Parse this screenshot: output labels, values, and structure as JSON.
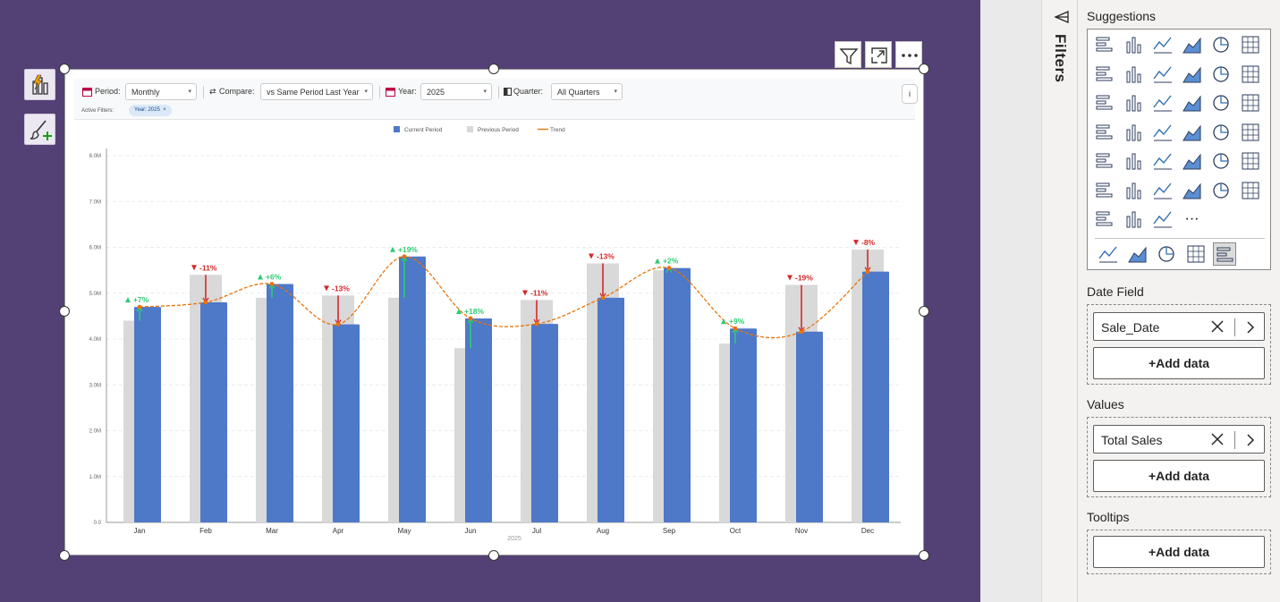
{
  "canvas": {
    "background": "#534176"
  },
  "visual_header": {
    "filter_icon": "filter-icon",
    "focus_icon": "focus-mode-icon",
    "more_icon": "more-options-icon"
  },
  "toolbar": {
    "period_label": "Period:",
    "period_value": "Monthly",
    "compare_label": "Compare:",
    "compare_value": "vs Same Period Last Year",
    "year_label": "Year:",
    "year_value": "2025",
    "quarter_label": "Quarter:",
    "quarter_value": "All Quarters",
    "info_label": "i",
    "active_filters_label": "Active Filters:",
    "active_chip": "Year: 2025",
    "chip_close": "×"
  },
  "chart_data": {
    "type": "bar",
    "legend": [
      "Current Period",
      "Previous Period",
      "Trend"
    ],
    "categories": [
      "Jan",
      "Feb",
      "Mar",
      "Apr",
      "May",
      "Jun",
      "Jul",
      "Aug",
      "Sep",
      "Oct",
      "Nov",
      "Dec"
    ],
    "series": [
      {
        "name": "Previous Period",
        "color": "#d9d9d9",
        "values": [
          4.4,
          5.4,
          4.9,
          4.95,
          4.9,
          3.8,
          4.85,
          5.65,
          5.5,
          3.9,
          5.18,
          5.95
        ]
      },
      {
        "name": "Current Period",
        "color": "#4e78c8",
        "values": [
          4.7,
          4.8,
          5.2,
          4.32,
          5.8,
          4.45,
          4.33,
          4.9,
          5.55,
          4.23,
          4.16,
          5.47
        ]
      }
    ],
    "trend": {
      "name": "Trend",
      "color": "#e8740c"
    },
    "change_labels": [
      "+7%",
      "-11%",
      "+6%",
      "-13%",
      "+19%",
      "+18%",
      "-11%",
      "-13%",
      "+2%",
      "+9%",
      "-19%",
      "-8%"
    ],
    "positive_color": "#2ecc71",
    "negative_color": "#d62728",
    "y_ticks": [
      "0.0",
      "1.0M",
      "2.0M",
      "3.0M",
      "4.0M",
      "5.0M",
      "6.0M",
      "7.0M",
      "8.0M"
    ],
    "ylim": [
      0,
      8
    ],
    "xlabel": "2025",
    "grid": true,
    "legend_position": "top-center"
  },
  "filters_pane": {
    "label": "Filters",
    "icon": "filter-pane-icon"
  },
  "viz_pane": {
    "suggestions_title": "Suggestions",
    "date_field_title": "Date Field",
    "date_field_value": "Sale_Date",
    "values_title": "Values",
    "values_value": "Total Sales",
    "tooltips_title": "Tooltips",
    "add_data": "+Add data",
    "more_label": "···",
    "visual_icons": [
      "stacked-bar-icon",
      "stacked-column-icon",
      "clustered-bar-icon",
      "clustered-column-icon",
      "100-bar-icon",
      "100-column-icon",
      "line-chart-icon",
      "area-chart-icon",
      "stacked-area-icon",
      "100-area-icon",
      "line-column-icon",
      "line-clustered-column-icon",
      "ribbon-chart-icon",
      "waterfall-icon",
      "funnel-icon",
      "scatter-icon",
      "pie-chart-icon",
      "donut-chart-icon",
      "treemap-icon",
      "map-icon",
      "azure-map-icon",
      "gauge-icon",
      "card-icon",
      "kpi-icon",
      "slicer-icon",
      "table-icon",
      "matrix-icon",
      "r-visual-icon",
      "python-visual-icon",
      "key-influencers-icon",
      "decomposition-tree-icon",
      "qna-icon",
      "paginated-report-icon",
      "power-apps-icon",
      "power-automate-icon",
      "image-icon",
      "smart-narrative-icon",
      "copilot-icon",
      "arrow-visual-icon"
    ],
    "custom_icons": [
      "globe-map-icon",
      "filled-map-icon",
      "trophy-icon",
      "filter-custom-icon",
      "custom-chart-icon"
    ]
  }
}
